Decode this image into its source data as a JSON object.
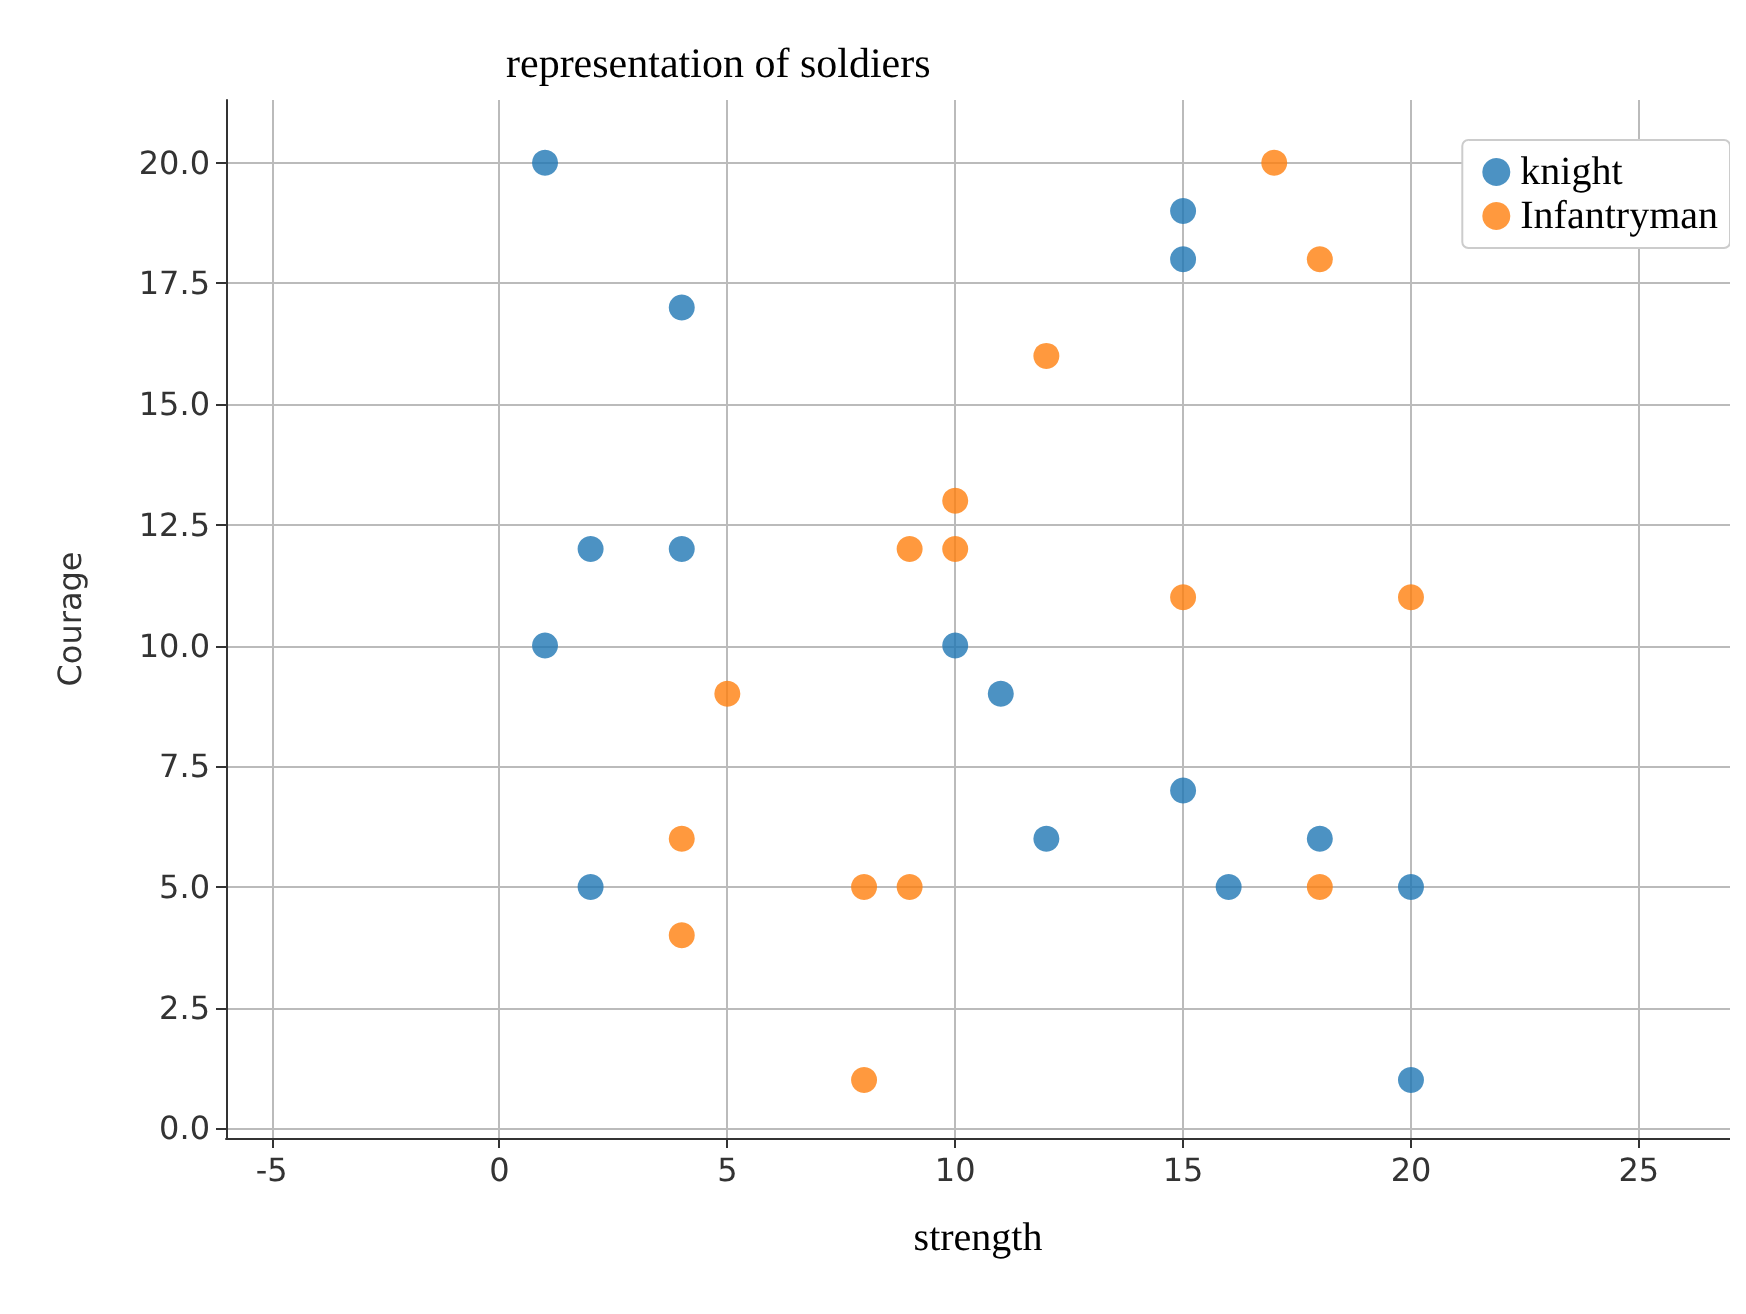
{
  "chart_data": {
    "type": "scatter",
    "title": "representation of soldiers",
    "xlabel": "strength",
    "ylabel": "Courage",
    "xlim": [
      -6,
      27
    ],
    "xticks": [
      -5,
      0,
      5,
      10,
      15,
      20,
      25
    ],
    "ylim": [
      -0.2,
      21.3
    ],
    "yticks": [
      {
        "value": 0,
        "label": "0.0"
      },
      {
        "value": 2.5,
        "label": "2.5"
      },
      {
        "value": 5,
        "label": "5.0"
      },
      {
        "value": 7.5,
        "label": "7.5"
      },
      {
        "value": 10,
        "label": "10.0"
      },
      {
        "value": 12.5,
        "label": "12.5"
      },
      {
        "value": 15,
        "label": "15.0"
      },
      {
        "value": 17.5,
        "label": "17.5"
      },
      {
        "value": 20,
        "label": "20.0"
      }
    ],
    "grid": true,
    "legend": "top right",
    "marker": "circle",
    "series": [
      {
        "name": "knight",
        "color": "#1f77b4",
        "x": [
          1,
          15,
          15,
          4,
          2,
          4,
          1,
          10,
          11,
          15,
          12,
          18,
          2,
          16,
          20,
          20
        ],
        "values": [
          20,
          19,
          18,
          17,
          12,
          12,
          10,
          10,
          9,
          7,
          6,
          6,
          5,
          5,
          5,
          1
        ]
      },
      {
        "name": "Infantryman",
        "color": "#ff7f0e",
        "x": [
          17,
          18,
          12,
          10,
          9,
          10,
          15,
          20,
          5,
          4,
          8,
          9,
          18,
          4,
          8
        ],
        "values": [
          20,
          18,
          16,
          13,
          12,
          12,
          11,
          11,
          9,
          6,
          5,
          5,
          5,
          4,
          1
        ]
      }
    ]
  }
}
